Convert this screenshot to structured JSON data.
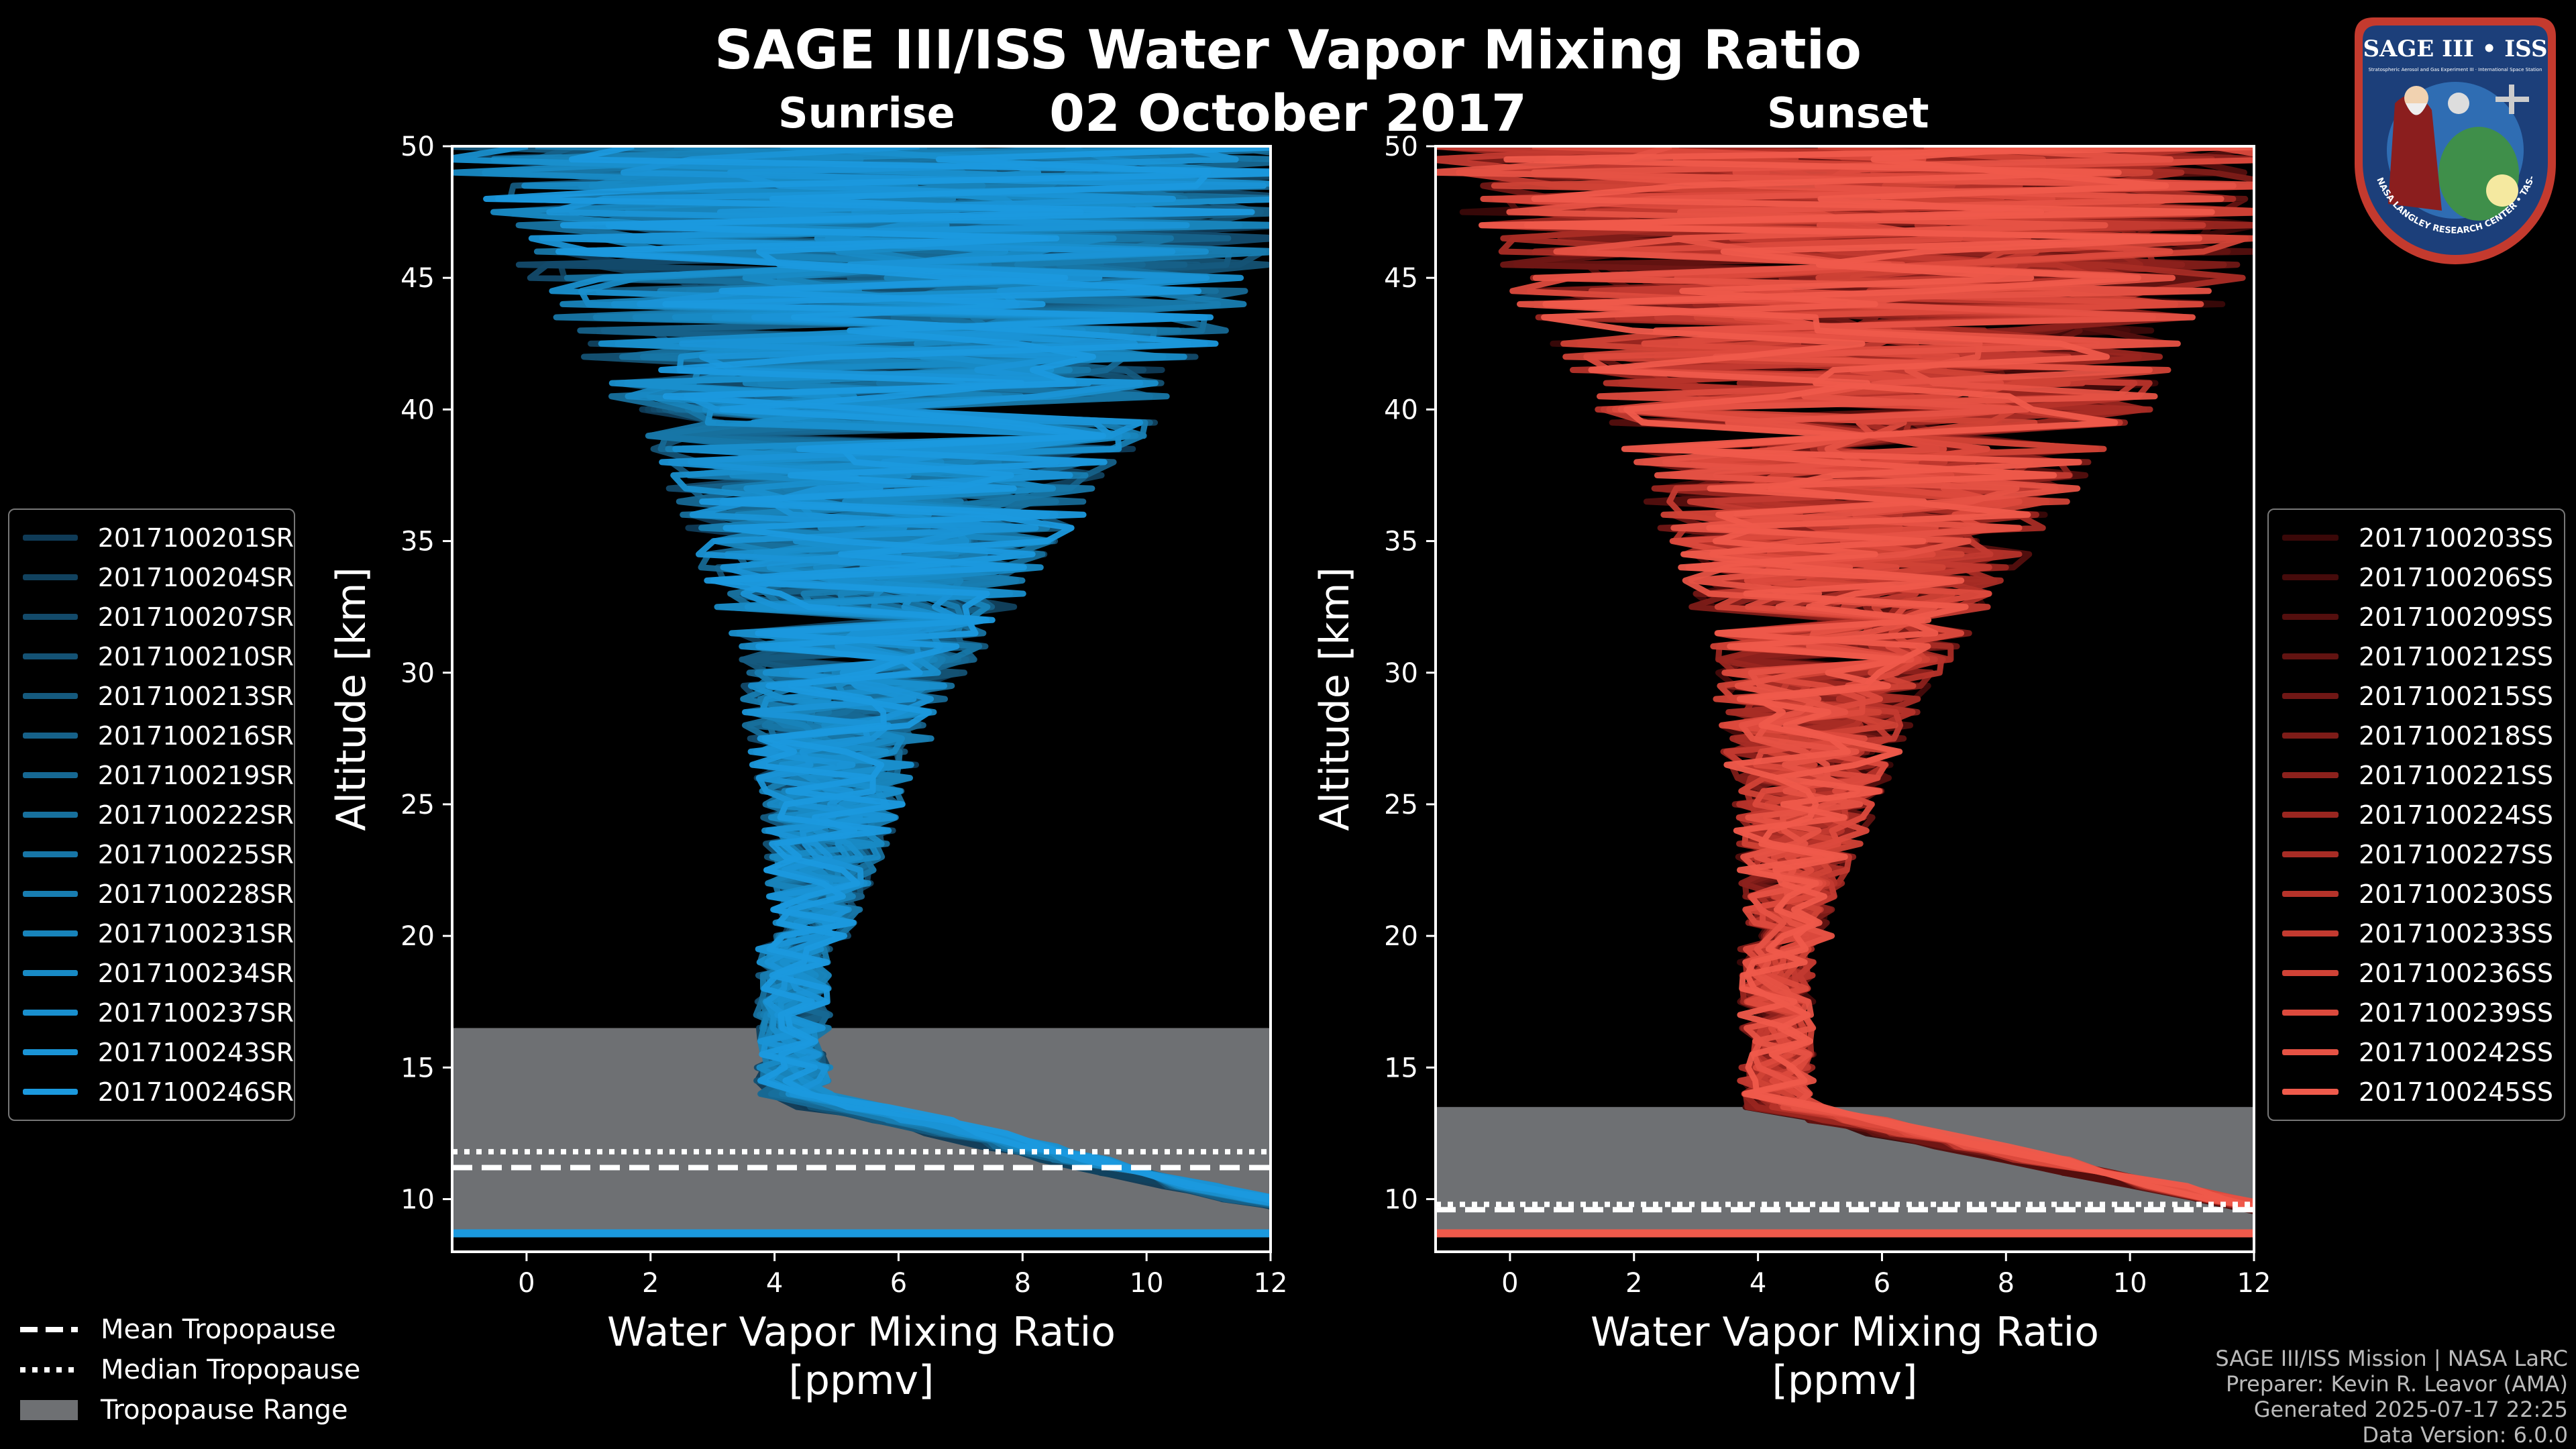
{
  "header": {
    "title": "SAGE III/ISS Water Vapor Mixing Ratio",
    "date": "02 October 2017",
    "sunrise_label": "Sunrise",
    "sunset_label": "Sunset"
  },
  "badge": {
    "text": "SAGE III • ISS",
    "subtext": "Stratospheric Aerosol and Gas Experiment III · International Space Station",
    "ring_text": "BALL • NASA LANGLEY RESEARCH CENTER • TAS-I • ESA"
  },
  "tropopause_legend": {
    "mean": "Mean Tropopause",
    "median": "Median Tropopause",
    "range": "Tropopause Range"
  },
  "footer": {
    "line1": "SAGE III/ISS Mission | NASA LaRC",
    "line2": "Preparer: Kevin R. Leavor (AMA)",
    "line3": "Generated 2025-07-17 22:25",
    "line4": "Data Version: 6.0.0"
  },
  "colors": {
    "sunrise": "#1a8fd6",
    "sunset": "#ef5a4b",
    "range_fill": "#6e7073",
    "axis": "#ffffff"
  },
  "chart_data": [
    {
      "type": "line",
      "name": "Sunrise",
      "xlabel": "Water Vapor Mixing Ratio\n[ppmv]",
      "ylabel": "Altitude [km]",
      "xlim": [
        -1.2,
        12
      ],
      "ylim": [
        8,
        50
      ],
      "xticks": [
        0,
        2,
        4,
        6,
        8,
        10,
        12
      ],
      "yticks": [
        10,
        15,
        20,
        25,
        30,
        35,
        40,
        45,
        50
      ],
      "tropopause": {
        "mean": 11.2,
        "median": 11.8,
        "range": [
          8.7,
          16.5
        ]
      },
      "series": [
        {
          "name": "2017100201SR",
          "color": "#0f3b57"
        },
        {
          "name": "2017100204SR",
          "color": "#11425f"
        },
        {
          "name": "2017100207SR",
          "color": "#134a6a"
        },
        {
          "name": "2017100210SR",
          "color": "#145274"
        },
        {
          "name": "2017100213SR",
          "color": "#155a7e"
        },
        {
          "name": "2017100216SR",
          "color": "#166189"
        },
        {
          "name": "2017100219SR",
          "color": "#166893"
        },
        {
          "name": "2017100222SR",
          "color": "#17709d"
        },
        {
          "name": "2017100225SR",
          "color": "#1776a7"
        },
        {
          "name": "2017100228SR",
          "color": "#187db1"
        },
        {
          "name": "2017100231SR",
          "color": "#1884bb"
        },
        {
          "name": "2017100234SR",
          "color": "#188ac5"
        },
        {
          "name": "2017100237SR",
          "color": "#198fce"
        },
        {
          "name": "2017100243SR",
          "color": "#1a94d6"
        },
        {
          "name": "2017100246SR",
          "color": "#1b99de"
        }
      ]
    },
    {
      "type": "line",
      "name": "Sunset",
      "xlabel": "Water Vapor Mixing Ratio\n[ppmv]",
      "ylabel": "Altitude [km]",
      "xlim": [
        -1.2,
        12
      ],
      "ylim": [
        8,
        50
      ],
      "xticks": [
        0,
        2,
        4,
        6,
        8,
        10,
        12
      ],
      "yticks": [
        10,
        15,
        20,
        25,
        30,
        35,
        40,
        45,
        50
      ],
      "tropopause": {
        "mean": 9.6,
        "median": 9.8,
        "range": [
          8.7,
          13.5
        ]
      },
      "series": [
        {
          "name": "2017100203SS",
          "color": "#3a0808"
        },
        {
          "name": "2017100206SS",
          "color": "#460b0b"
        },
        {
          "name": "2017100209SS",
          "color": "#540f0e"
        },
        {
          "name": "2017100212SS",
          "color": "#621311"
        },
        {
          "name": "2017100215SS",
          "color": "#701715"
        },
        {
          "name": "2017100218SS",
          "color": "#7e1c18"
        },
        {
          "name": "2017100221SS",
          "color": "#8c211c"
        },
        {
          "name": "2017100224SS",
          "color": "#9a2620"
        },
        {
          "name": "2017100227SS",
          "color": "#a82c25"
        },
        {
          "name": "2017100230SS",
          "color": "#b6332a"
        },
        {
          "name": "2017100233SS",
          "color": "#c33a30"
        },
        {
          "name": "2017100236SS",
          "color": "#d04236"
        },
        {
          "name": "2017100239SS",
          "color": "#dc4a3d"
        },
        {
          "name": "2017100242SS",
          "color": "#e65244"
        },
        {
          "name": "2017100245SS",
          "color": "#ef5a4b"
        }
      ]
    }
  ]
}
